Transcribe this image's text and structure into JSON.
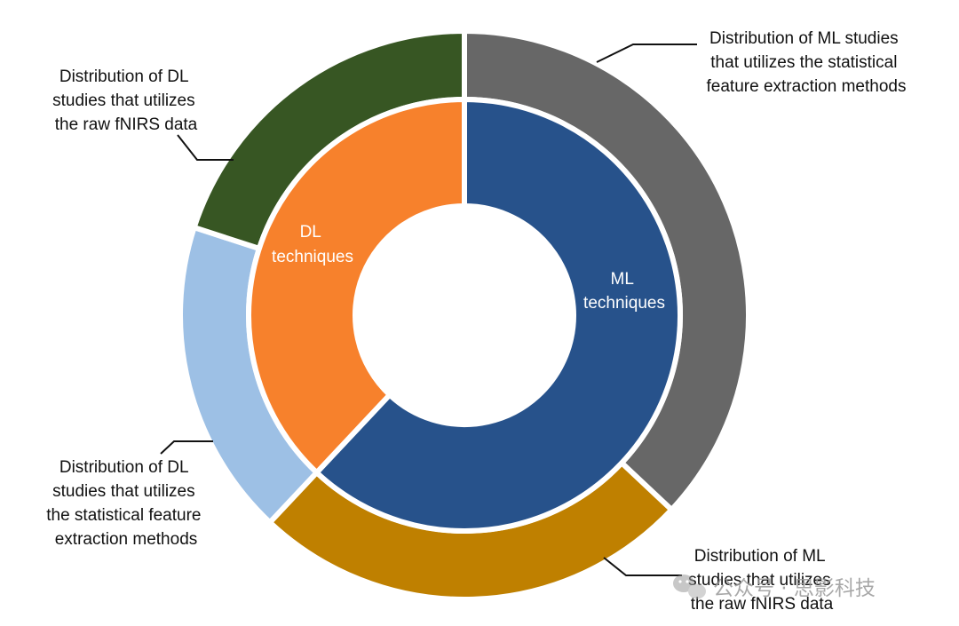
{
  "chart_data": {
    "type": "donut",
    "title": "",
    "inner_ring": [
      {
        "name": "ML techniques",
        "lines": [
          "ML",
          "techniques"
        ],
        "value": 62,
        "color": "#27528b"
      },
      {
        "name": "DL techniques",
        "lines": [
          "DL",
          "techniques"
        ],
        "value": 38,
        "color": "#f7812c"
      }
    ],
    "outer_ring": [
      {
        "parent": "ML techniques",
        "name": "Distribution of ML studies that utilizes the statistical feature extraction methods",
        "lines": [
          "Distribution of ML studies",
          "that utilizes the statistical",
          "feature extraction methods"
        ],
        "value": 37,
        "color": "#676767"
      },
      {
        "parent": "ML techniques",
        "name": "Distribution of ML studies that utilizes the raw fNIRS data",
        "lines": [
          "Distribution of ML",
          "studies that utilizes",
          "the raw fNIRS data"
        ],
        "value": 25,
        "color": "#bf8000"
      },
      {
        "parent": "DL techniques",
        "name": "Distribution of DL studies that utilizes the statistical feature extraction methods",
        "lines": [
          "Distribution of DL",
          "studies that utilizes",
          "the statistical feature",
          "extraction methods"
        ],
        "value": 18,
        "color": "#9dc0e5"
      },
      {
        "parent": "DL techniques",
        "name": "Distribution of DL studies that utilizes the raw fNIRS data",
        "lines": [
          "Distribution of DL",
          "studies that utilizes",
          "the raw fNIRS data"
        ],
        "value": 20,
        "color": "#375623"
      }
    ]
  },
  "watermark": {
    "text": "公众号 · 思影科技",
    "icon": "wechat-icon"
  }
}
